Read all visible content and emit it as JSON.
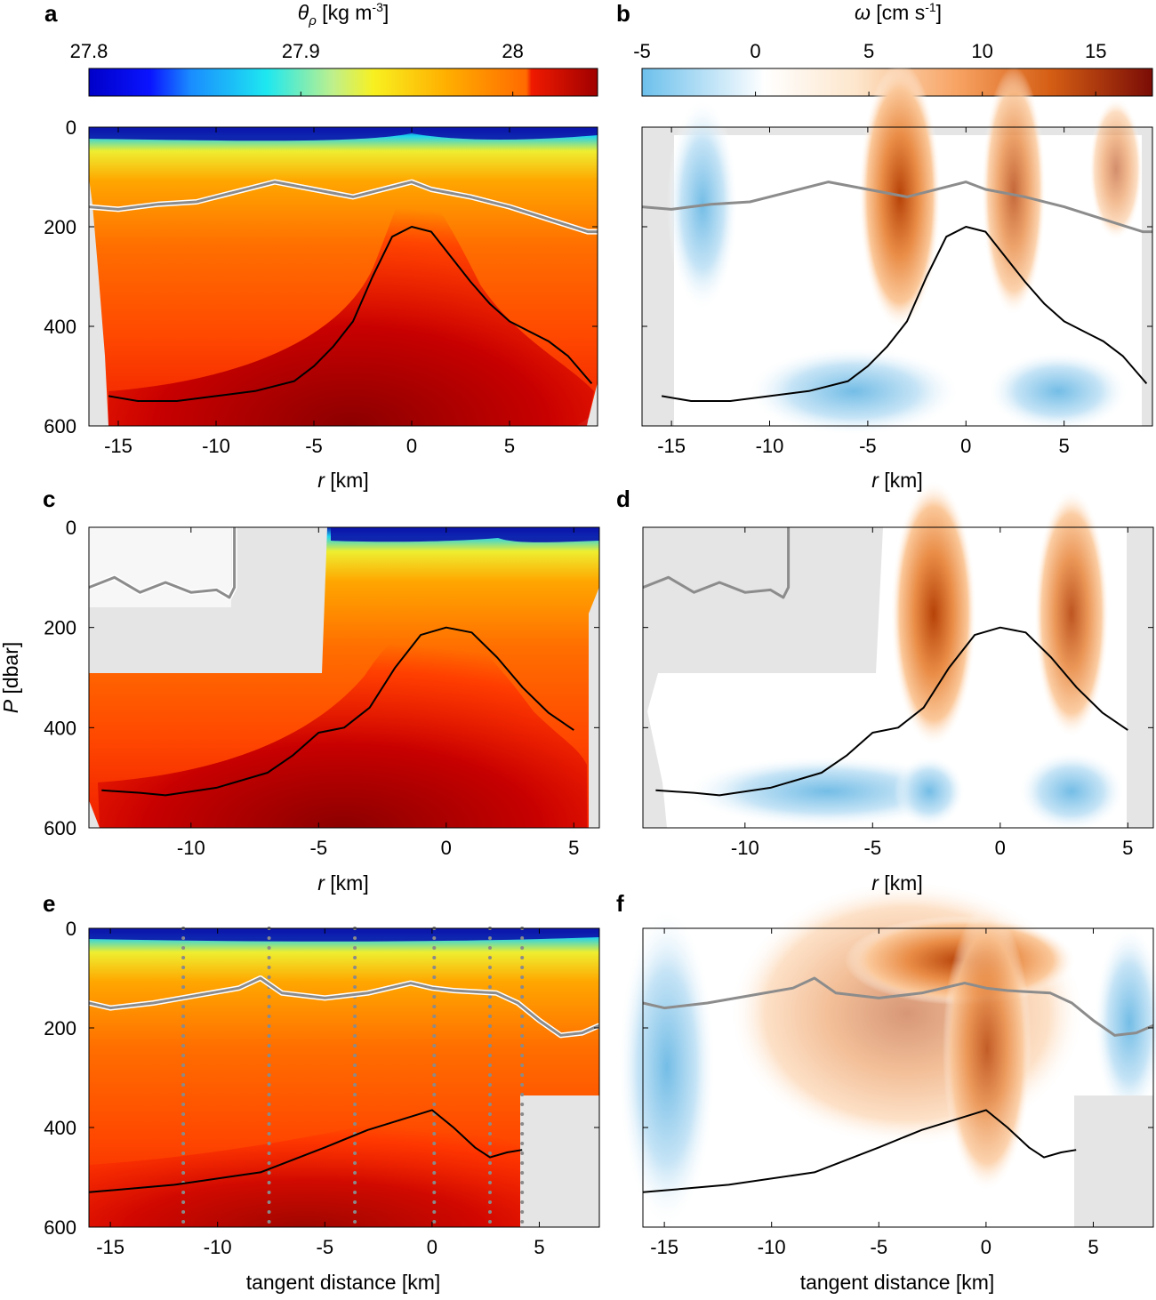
{
  "colorbars": {
    "a": {
      "label_sym": "θ",
      "label_sub": "ρ",
      "label_unit": " [kg m",
      "label_sup": "-3",
      "label_end": "]",
      "ticks": [
        {
          "v": 27.8,
          "t": "27.8"
        },
        {
          "v": 27.9,
          "t": "27.9"
        },
        {
          "v": 28.0,
          "t": "28"
        }
      ],
      "range": [
        27.8,
        28.04
      ]
    },
    "b": {
      "label_sym": "ω",
      "label_unit": " [cm s",
      "label_sup": "-1",
      "label_end": "]",
      "ticks": [
        {
          "v": -5,
          "t": "-5"
        },
        {
          "v": 0,
          "t": "0"
        },
        {
          "v": 5,
          "t": "5"
        },
        {
          "v": 10,
          "t": "10"
        },
        {
          "v": 15,
          "t": "15"
        }
      ],
      "range": [
        -5,
        17.5
      ]
    }
  },
  "chart_data": [
    {
      "panel": "a",
      "type": "heatmap",
      "variable": "density",
      "xlabel_sym": "r",
      "xlabel_unit": " [km]",
      "ylim": [
        0,
        600
      ],
      "xlim": [
        -16.5,
        9.5
      ],
      "xticks": [
        -15,
        -10,
        -5,
        0,
        5
      ],
      "yticks": [
        0,
        200,
        400,
        600
      ],
      "isopycnal_black": {
        "x": [
          -15.5,
          -14,
          -12,
          -10,
          -8,
          -6,
          -5,
          -4,
          -3,
          -2,
          -1,
          0,
          1,
          2,
          3,
          4,
          5,
          6,
          7,
          8,
          9.2
        ],
        "y": [
          540,
          550,
          550,
          540,
          530,
          510,
          480,
          440,
          390,
          300,
          220,
          200,
          210,
          260,
          310,
          355,
          390,
          410,
          430,
          460,
          515
        ]
      },
      "mld_gray": {
        "x": [
          -16.5,
          -15,
          -13,
          -11,
          -9,
          -7,
          -5,
          -3,
          -1,
          0,
          1,
          3,
          5,
          7,
          9,
          9.5
        ],
        "y": [
          160,
          165,
          155,
          150,
          130,
          110,
          125,
          140,
          120,
          110,
          125,
          140,
          160,
          185,
          210,
          210
        ]
      }
    },
    {
      "panel": "b",
      "type": "heatmap",
      "variable": "vertical velocity",
      "xlabel_sym": "r",
      "xlabel_unit": " [km]",
      "ylim": [
        0,
        600
      ],
      "xlim": [
        -16.5,
        9.5
      ],
      "xticks": [
        -15,
        -10,
        -5,
        0,
        5
      ],
      "yticks": [
        0,
        200,
        400,
        600
      ],
      "isopycnal_black": {
        "x": [
          -15.5,
          -14,
          -12,
          -10,
          -8,
          -6,
          -5,
          -4,
          -3,
          -2,
          -1,
          0,
          1,
          2,
          3,
          4,
          5,
          6,
          7,
          8,
          9.2
        ],
        "y": [
          540,
          550,
          550,
          540,
          530,
          510,
          480,
          440,
          390,
          300,
          220,
          200,
          210,
          260,
          310,
          355,
          390,
          410,
          430,
          460,
          515
        ]
      },
      "mld_gray": {
        "x": [
          -16.5,
          -15,
          -13,
          -11,
          -9,
          -7,
          -5,
          -3,
          -1,
          0,
          1,
          3,
          5,
          7,
          9,
          9.5
        ],
        "y": [
          160,
          165,
          155,
          150,
          130,
          110,
          125,
          140,
          120,
          110,
          125,
          140,
          160,
          185,
          210,
          210
        ]
      }
    },
    {
      "panel": "c",
      "type": "heatmap",
      "variable": "density",
      "xlabel_sym": "r",
      "xlabel_unit": " [km]",
      "ylabel_sym": "P",
      "ylabel_unit": " [dbar]",
      "ylim": [
        0,
        600
      ],
      "xlim": [
        -14,
        6
      ],
      "xticks": [
        -10,
        -5,
        0,
        5
      ],
      "yticks": [
        0,
        200,
        400,
        600
      ],
      "isopycnal_black": {
        "x": [
          -13.5,
          -12,
          -11,
          -9,
          -7,
          -6,
          -5,
          -4,
          -3,
          -2,
          -1,
          0,
          1,
          2,
          3,
          4,
          5
        ],
        "y": [
          525,
          530,
          535,
          520,
          490,
          455,
          410,
          400,
          360,
          280,
          215,
          200,
          210,
          260,
          320,
          370,
          405
        ]
      },
      "mld_gray": {
        "x": [
          -14,
          -13,
          -12,
          -11,
          -10,
          -9,
          -8.5,
          -8.3,
          -8.3
        ],
        "y": [
          120,
          100,
          130,
          110,
          130,
          125,
          140,
          120,
          0
        ]
      }
    },
    {
      "panel": "d",
      "type": "heatmap",
      "variable": "vertical velocity",
      "xlabel_sym": "r",
      "xlabel_unit": " [km]",
      "ylim": [
        0,
        600
      ],
      "xlim": [
        -14,
        6
      ],
      "xticks": [
        -10,
        -5,
        0,
        5
      ],
      "yticks": [
        0,
        200,
        400,
        600
      ],
      "isopycnal_black": {
        "x": [
          -13.5,
          -12,
          -11,
          -9,
          -7,
          -6,
          -5,
          -4,
          -3,
          -2,
          -1,
          0,
          1,
          2,
          3,
          4,
          5
        ],
        "y": [
          525,
          530,
          535,
          520,
          490,
          455,
          410,
          400,
          360,
          280,
          215,
          200,
          210,
          260,
          320,
          370,
          405
        ]
      },
      "mld_gray": {
        "x": [
          -14,
          -13,
          -12,
          -11,
          -10,
          -9,
          -8.5,
          -8.3,
          -8.3
        ],
        "y": [
          120,
          100,
          130,
          110,
          130,
          125,
          140,
          120,
          0
        ]
      }
    },
    {
      "panel": "e",
      "type": "heatmap",
      "variable": "density",
      "xlabel": "tangent distance [km]",
      "ylim": [
        0,
        600
      ],
      "xlim": [
        -16,
        7.8
      ],
      "xticks": [
        -15,
        -10,
        -5,
        0,
        5
      ],
      "yticks": [
        0,
        200,
        400,
        600
      ],
      "stations": [
        -11.6,
        -7.6,
        -3.6,
        0.1,
        2.7,
        4.2
      ],
      "isopycnal_black": {
        "x": [
          -16,
          -12,
          -8,
          -5,
          -3,
          0,
          1,
          2,
          2.7,
          3.5,
          4.2
        ],
        "y": [
          530,
          515,
          490,
          440,
          405,
          365,
          400,
          440,
          460,
          450,
          445
        ]
      },
      "mld_gray": {
        "x": [
          -16,
          -15,
          -13,
          -11,
          -9,
          -8,
          -7,
          -5,
          -3,
          -1,
          0,
          1,
          3,
          4,
          5,
          6,
          7,
          7.8
        ],
        "y": [
          150,
          160,
          150,
          135,
          120,
          100,
          130,
          140,
          130,
          110,
          120,
          125,
          130,
          150,
          185,
          215,
          210,
          195
        ]
      }
    },
    {
      "panel": "f",
      "type": "heatmap",
      "variable": "vertical velocity",
      "xlabel": "tangent distance [km]",
      "ylim": [
        0,
        600
      ],
      "xlim": [
        -16,
        7.8
      ],
      "xticks": [
        -15,
        -10,
        -5,
        0,
        5
      ],
      "yticks": [
        0,
        200,
        400,
        600
      ],
      "isopycnal_black": {
        "x": [
          -16,
          -12,
          -8,
          -5,
          -3,
          0,
          1,
          2,
          2.7,
          3.5,
          4.2
        ],
        "y": [
          530,
          515,
          490,
          440,
          405,
          365,
          400,
          440,
          460,
          450,
          445
        ]
      },
      "mld_gray": {
        "x": [
          -16,
          -15,
          -13,
          -11,
          -9,
          -8,
          -7,
          -5,
          -3,
          -1,
          0,
          1,
          3,
          4,
          5,
          6,
          7,
          7.8
        ],
        "y": [
          150,
          160,
          150,
          135,
          120,
          100,
          130,
          140,
          130,
          110,
          120,
          125,
          130,
          150,
          185,
          215,
          210,
          195
        ]
      }
    }
  ]
}
